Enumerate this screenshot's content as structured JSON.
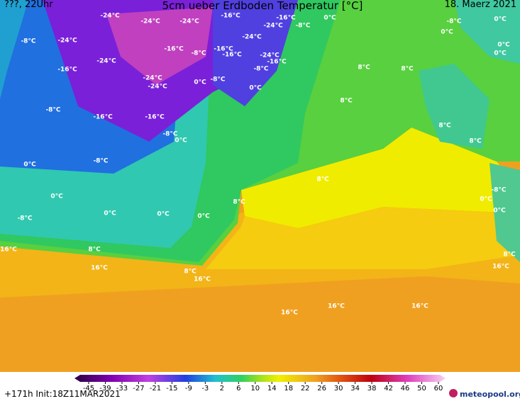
{
  "header": {
    "left": "???, 22Uhr",
    "title": "5cm ueber Erdboden Temperatur [°C]",
    "date": "18. Maerz 2021"
  },
  "map": {
    "labels": [
      "-24°C",
      "-24°C",
      "-24°C",
      "-16°C",
      "-16°C",
      "0°C",
      "-8°C",
      "-24°C",
      "-24°C",
      "-8°C",
      "-24°C",
      "-16°C",
      "-8°C",
      "-16°C",
      "-16°C",
      "-24°C",
      "-16°C",
      "-8°C",
      "-24°C",
      "-16°C",
      "-24°C",
      "-24°C",
      "0°C",
      "-8°C",
      "0°C",
      "8°C",
      "8°C",
      "8°C",
      "-8°C",
      "-16°C",
      "-16°C",
      "-8°C",
      "0°C",
      "-8°C",
      "0°C",
      "8°C",
      "8°C",
      "0°C",
      "-8°C",
      "0°C",
      "0°C",
      "0°C",
      "16°C",
      "8°C",
      "16°C",
      "8°C",
      "16°C",
      "16°C",
      "16°C",
      "16°C",
      "16°C",
      "8°C",
      "0°C",
      "0°C",
      "-8°C",
      "8°C",
      "8°C",
      "0°C",
      "-8°C",
      "0°C",
      "0°C",
      "0°C"
    ]
  },
  "colorbar": {
    "ticks": [
      -45,
      -39,
      -33,
      -27,
      -21,
      -15,
      -9,
      -3,
      2,
      6,
      10,
      14,
      18,
      22,
      26,
      30,
      34,
      38,
      42,
      46,
      50,
      60
    ]
  },
  "footer": {
    "run": "+171h Init:18Z11MAR2021",
    "logo": "meteopool.org"
  }
}
